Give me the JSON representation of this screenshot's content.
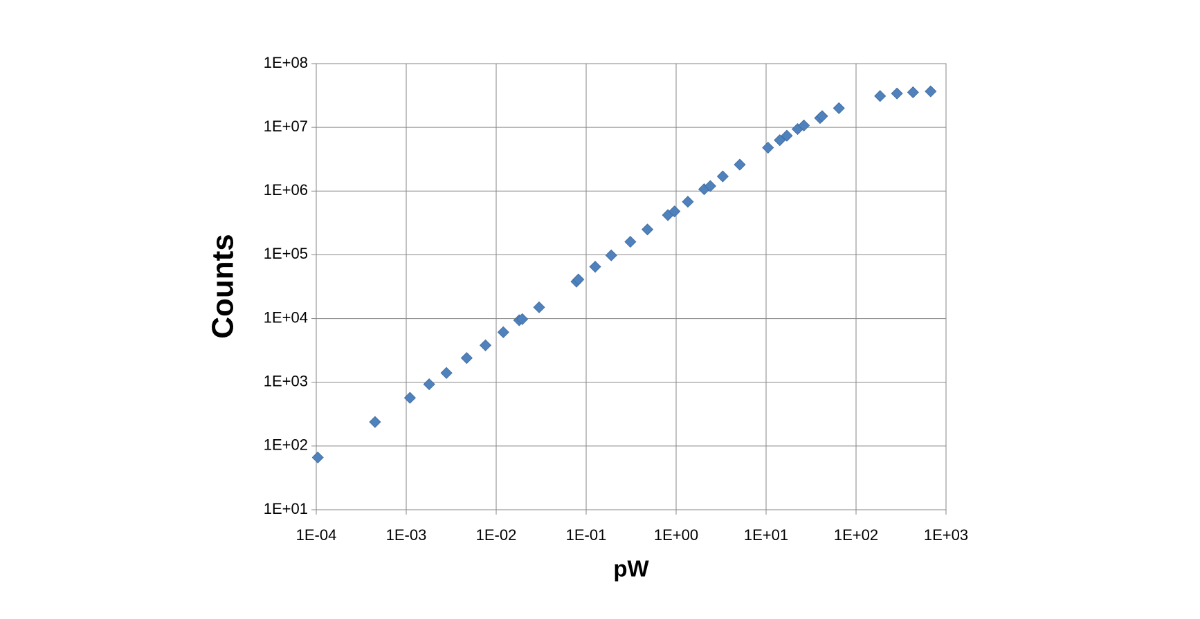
{
  "chart_data": {
    "type": "scatter",
    "x_label": "pW",
    "y_label": "Counts",
    "x_log": true,
    "y_log": true,
    "grid": true,
    "xlim": [
      0.0001,
      1000
    ],
    "ylim": [
      10,
      100000000
    ],
    "xticks": [
      {
        "value": 0.0001,
        "label": "1E-04"
      },
      {
        "value": 0.001,
        "label": "1E-03"
      },
      {
        "value": 0.01,
        "label": "1E-02"
      },
      {
        "value": 0.1,
        "label": "1E-01"
      },
      {
        "value": 1,
        "label": "1E+00"
      },
      {
        "value": 10,
        "label": "1E+01"
      },
      {
        "value": 100,
        "label": "1E+02"
      },
      {
        "value": 1000,
        "label": "1E+03"
      }
    ],
    "yticks": [
      {
        "value": 10,
        "label": "1E+01"
      },
      {
        "value": 100,
        "label": "1E+02"
      },
      {
        "value": 1000,
        "label": "1E+03"
      },
      {
        "value": 10000,
        "label": "1E+04"
      },
      {
        "value": 100000,
        "label": "1E+05"
      },
      {
        "value": 1000000,
        "label": "1E+06"
      },
      {
        "value": 10000000,
        "label": "1E+07"
      },
      {
        "value": 100000000,
        "label": "1E+08"
      }
    ],
    "color": "#4f81bd",
    "x": [
      0.000104,
      0.00045,
      0.0011,
      0.0018,
      0.0028,
      0.0047,
      0.0076,
      0.012,
      0.018,
      0.0195,
      0.03,
      0.078,
      0.082,
      0.126,
      0.19,
      0.31,
      0.48,
      0.81,
      0.96,
      1.35,
      2.05,
      2.4,
      3.3,
      5.1,
      10.5,
      14.2,
      17,
      22.4,
      26.3,
      39.8,
      42,
      64.5,
      185,
      285,
      430,
      675
    ],
    "y": [
      66,
      238,
      570,
      930,
      1400,
      2400,
      3800,
      6100,
      9400,
      9800,
      15000,
      38000,
      41000,
      65000,
      98000,
      160000,
      250000,
      420000,
      480000,
      680000,
      1070000,
      1200000,
      1700000,
      2600000,
      4800000,
      6300000,
      7400000,
      9400000,
      10700000,
      14000000,
      15000000,
      20000000,
      31000000,
      34000000,
      35500000,
      36700000
    ]
  }
}
